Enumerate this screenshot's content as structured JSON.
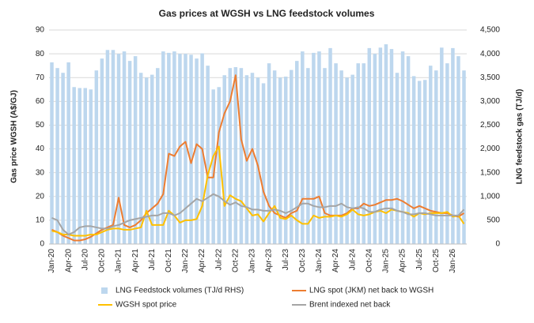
{
  "chart_data": {
    "type": "bar_line",
    "title": "Gas prices at WGSH vs LNG feedstock volumes",
    "y_label": "Gas price WGSH (A$/GJ)",
    "y2_label": "LNG feedstock gas (TJ/d)",
    "categories": [
      "Jan-20",
      null,
      null,
      "Apr-20",
      null,
      null,
      "Jul-20",
      null,
      null,
      "Oct-20",
      null,
      null,
      "Jan-21",
      null,
      null,
      "Apr-21",
      null,
      null,
      "Jul-21",
      null,
      null,
      "Oct-21",
      null,
      null,
      "Jan-22",
      null,
      null,
      "Apr-22",
      null,
      null,
      "Jul-22",
      null,
      null,
      "Oct-22",
      null,
      null,
      "Jan-23",
      null,
      null,
      "Apr-23",
      null,
      null,
      "Jul-23",
      null,
      null,
      "Oct-23",
      null,
      null,
      "Jan-24",
      null,
      null,
      "Apr-24",
      null,
      null,
      "Jul-24",
      null,
      null,
      "Oct-24",
      null,
      null,
      "Jan-25",
      null,
      null,
      "Apr-25",
      null,
      null,
      "Jul-25",
      null,
      null,
      "Oct-25",
      null,
      null,
      "Jan-26",
      null,
      null
    ],
    "series": [
      {
        "name": "LNG Feedstock volumes (TJ/d RHS)",
        "kind": "bar",
        "axis": "y2",
        "color": "#bdd7ee",
        "values": [
          3820,
          3700,
          3600,
          3820,
          3300,
          3280,
          3280,
          3250,
          3650,
          3900,
          4080,
          4080,
          4000,
          4050,
          3850,
          3950,
          3600,
          3500,
          3560,
          3700,
          4050,
          4020,
          4050,
          4000,
          4000,
          3980,
          3900,
          4010,
          3750,
          3250,
          3300,
          3550,
          3700,
          3720,
          3700,
          3550,
          3600,
          3500,
          3380,
          3800,
          3650,
          3500,
          3520,
          3660,
          3850,
          4050,
          3700,
          4020,
          4050,
          3700,
          4120,
          3800,
          3650,
          3500,
          3560,
          3800,
          3800,
          4120,
          4000,
          4130,
          4200,
          4100,
          3600,
          4050,
          3950,
          3530,
          3430,
          3450,
          3750,
          3650,
          4130,
          3800,
          4120,
          3950,
          3650
        ]
      },
      {
        "name": "LNG spot (JKM) net back to WGSH",
        "kind": "line",
        "color": "#ed7d31",
        "values": [
          6,
          5,
          3.5,
          2.5,
          1.5,
          1.5,
          2,
          3,
          4.5,
          6,
          7,
          8,
          19.5,
          8,
          7,
          8,
          10,
          13,
          15,
          17,
          21,
          38,
          37,
          41,
          43,
          34,
          42,
          40,
          28,
          28,
          47,
          55,
          60,
          71,
          44,
          35,
          40,
          33,
          22,
          16,
          13,
          12,
          11,
          13,
          14,
          19,
          19,
          19,
          20,
          13,
          12,
          12,
          12,
          13,
          15,
          15,
          17,
          16,
          16.5,
          17.5,
          18.5,
          18.5,
          19,
          18,
          16.5,
          15,
          16,
          15,
          14,
          13.5,
          13,
          13,
          12,
          11.5,
          13
        ]
      },
      {
        "name": "WGSH spot price",
        "kind": "line",
        "color": "#ffc000",
        "values": [
          5.5,
          5,
          4,
          4,
          3.5,
          3.5,
          3.5,
          4,
          4,
          5,
          6,
          6.5,
          6.5,
          6,
          6,
          6.5,
          7,
          14,
          8,
          8,
          8,
          14,
          12,
          9,
          10,
          10,
          10.5,
          16,
          29,
          37,
          41,
          16,
          20.5,
          19,
          18,
          15,
          12,
          12.5,
          9.5,
          13,
          16,
          11,
          10.5,
          12,
          10,
          8.5,
          8.5,
          12,
          11,
          11.5,
          11.5,
          12,
          11.5,
          12.5,
          14.5,
          12.5,
          12,
          12.5,
          13.5,
          14,
          13,
          14.5,
          14,
          13.5,
          13,
          11.5,
          13,
          12.5,
          13,
          13,
          13,
          13.5,
          11.5,
          12,
          8.5
        ]
      },
      {
        "name": "Brent indexed net back",
        "kind": "line",
        "color": "#a5a5a5",
        "values": [
          11,
          10,
          6,
          4,
          5,
          7,
          7.5,
          7.5,
          7,
          6.5,
          6.5,
          7.5,
          8,
          9,
          10,
          10.5,
          11,
          11.5,
          12,
          12,
          13,
          13,
          12,
          13,
          15,
          17,
          19,
          18,
          19.5,
          21,
          20,
          18,
          16.5,
          17.5,
          16,
          15.5,
          14.5,
          14.5,
          14,
          14,
          14.5,
          14,
          13,
          14,
          15.5,
          17,
          17,
          16,
          15.5,
          15.5,
          16,
          16,
          17,
          15.5,
          15,
          15.5,
          15,
          13.5,
          13.5,
          14.5,
          15,
          15,
          14,
          13.5,
          12.5,
          12.5,
          13,
          13,
          12.5,
          12,
          12,
          12,
          12,
          12,
          14.5
        ]
      }
    ],
    "ylim": [
      0,
      90
    ],
    "yticks": [
      0,
      10,
      20,
      30,
      40,
      50,
      60,
      70,
      80,
      90
    ],
    "y2lim": [
      0,
      4500
    ],
    "y2ticks": [
      0,
      500,
      {
        "value": 1000,
        "label": "1,000"
      },
      {
        "value": 1500,
        "label": "1,500"
      },
      {
        "value": 2000,
        "label": "2,000"
      },
      {
        "value": 2500,
        "label": "2,500"
      },
      {
        "value": 3000,
        "label": "3,000"
      },
      {
        "value": 3500,
        "label": "3,500"
      },
      {
        "value": 4000,
        "label": "4,000"
      },
      {
        "value": 4500,
        "label": "4,500"
      }
    ],
    "grid": true,
    "legend": "bottom"
  }
}
